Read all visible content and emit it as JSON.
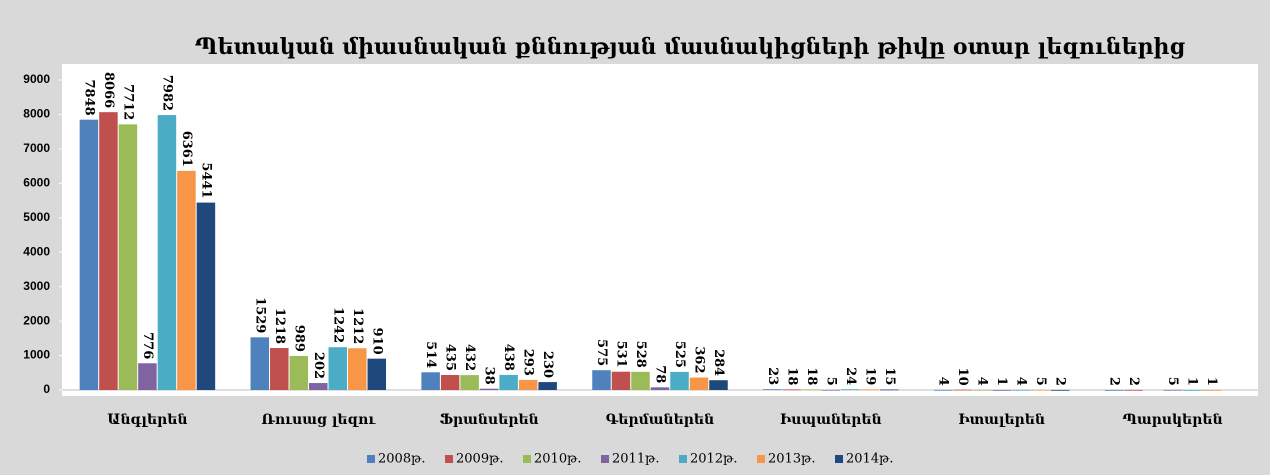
{
  "chart_data": {
    "type": "bar",
    "title": "Պետական միասնական քննության մասնակիցների թիվը  օտար լեզուներից",
    "categories": [
      "Անգլերեն",
      "Ռուսաց լեզու",
      "Ֆրանսերեն",
      "Գերմաներեն",
      "Իսպաներեն",
      "Իտալերեն",
      "Պարսկերեն"
    ],
    "series": [
      {
        "name": "2008թ.",
        "color": "#4f81bd",
        "values": [
          7848,
          1529,
          514,
          575,
          23,
          4,
          2
        ]
      },
      {
        "name": "2009թ.",
        "color": "#c0504d",
        "values": [
          8066,
          1218,
          435,
          531,
          18,
          10,
          2
        ]
      },
      {
        "name": "2010թ.",
        "color": "#9bbb59",
        "values": [
          7712,
          989,
          432,
          528,
          18,
          4,
          null
        ]
      },
      {
        "name": "2011թ.",
        "color": "#8064a2",
        "values": [
          776,
          202,
          38,
          78,
          5,
          1,
          5
        ]
      },
      {
        "name": "2012թ.",
        "color": "#4bacc6",
        "values": [
          7982,
          1242,
          438,
          525,
          24,
          4,
          1
        ]
      },
      {
        "name": "2013թ.",
        "color": "#f79646",
        "values": [
          6361,
          1212,
          293,
          362,
          19,
          5,
          1
        ]
      },
      {
        "name": "2014թ.",
        "color": "#1f497d",
        "values": [
          5441,
          910,
          230,
          284,
          15,
          2,
          null
        ]
      }
    ],
    "ylim": [
      0,
      9000
    ],
    "yticks": [
      0,
      1000,
      2000,
      3000,
      4000,
      5000,
      6000,
      7000,
      8000,
      9000
    ],
    "legend": "bottom"
  }
}
